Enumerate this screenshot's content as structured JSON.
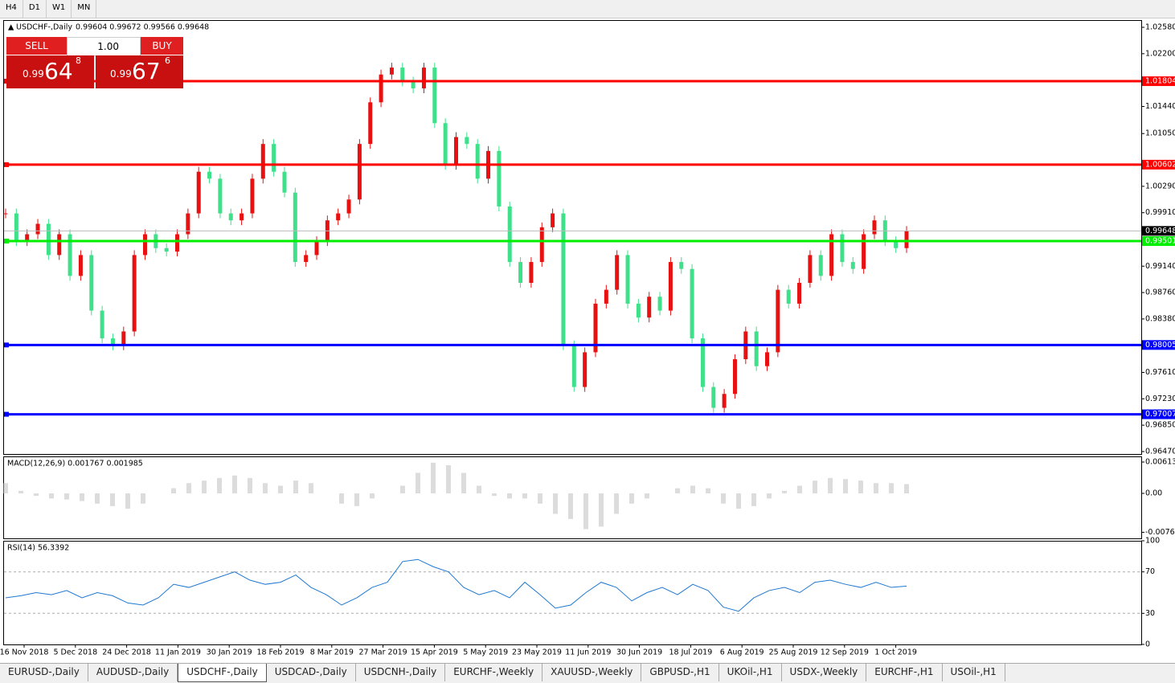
{
  "toolbar": [
    "H4",
    "D1",
    "W1",
    "MN"
  ],
  "trade_panel": {
    "sell": "SELL",
    "buy": "BUY",
    "lots": "1.00",
    "bid": {
      "big": "0.99",
      "main": "64",
      "small": "8"
    },
    "ask": {
      "big": "0.99",
      "main": "67",
      "small": "6"
    }
  },
  "price_chart": {
    "type": "candlestick",
    "title": "USDCHF-,Daily",
    "ohlc": "0.99604 0.99672 0.99566 0.99648",
    "ylim": [
      0.96435,
      1.02684
    ],
    "yticks": [
      {
        "value": 1.0258,
        "label": "1.02580"
      },
      {
        "value": 1.022,
        "label": "1.02200"
      },
      {
        "value": 1.0144,
        "label": "1.01440"
      },
      {
        "value": 1.0105,
        "label": "1.01050"
      },
      {
        "value": 1.0029,
        "label": "1.00290"
      },
      {
        "value": 0.9991,
        "label": "0.99910"
      },
      {
        "value": 0.9914,
        "label": "0.99140"
      },
      {
        "value": 0.9876,
        "label": "0.98760"
      },
      {
        "value": 0.9838,
        "label": "0.98380"
      },
      {
        "value": 0.9761,
        "label": "0.97610"
      },
      {
        "value": 0.9723,
        "label": "0.97230"
      },
      {
        "value": 0.9685,
        "label": "0.96850"
      },
      {
        "value": 0.9647,
        "label": "0.96470"
      }
    ],
    "levels": [
      {
        "value": 1.01804,
        "color": "#ff0000"
      },
      {
        "value": 1.00602,
        "color": "#ff0000"
      },
      {
        "value": 0.99501,
        "color": "#00ee00"
      },
      {
        "value": 0.98005,
        "color": "#0000ff"
      },
      {
        "value": 0.97007,
        "color": "#0000ff"
      }
    ],
    "last_price": 0.99648,
    "up_color": "#e81010",
    "down_color": "#3ee08a",
    "closes": [
      0.999,
      0.995,
      0.996,
      0.9975,
      0.993,
      0.996,
      0.99,
      0.993,
      0.985,
      0.981,
      0.98,
      0.982,
      0.993,
      0.996,
      0.994,
      0.9935,
      0.996,
      0.999,
      1.005,
      1.004,
      0.999,
      0.998,
      0.999,
      1.004,
      1.009,
      1.005,
      1.002,
      0.992,
      0.993,
      0.995,
      0.998,
      0.999,
      1.001,
      1.009,
      1.015,
      1.019,
      1.02,
      1.018,
      1.017,
      1.02,
      1.012,
      1.006,
      1.01,
      1.009,
      1.004,
      1.008,
      1.0,
      0.992,
      0.989,
      0.992,
      0.997,
      0.999,
      0.98,
      0.974,
      0.979,
      0.986,
      0.988,
      0.993,
      0.986,
      0.984,
      0.987,
      0.985,
      0.992,
      0.991,
      0.981,
      0.974,
      0.971,
      0.973,
      0.978,
      0.982,
      0.977,
      0.979,
      0.988,
      0.986,
      0.989,
      0.993,
      0.99,
      0.996,
      0.992,
      0.991,
      0.996,
      0.998,
      0.995,
      0.994,
      0.99648
    ]
  },
  "macd": {
    "type": "histogram",
    "title": "MACD(12,26,9) 0.001767 0.001985",
    "ylim": [
      -0.0088,
      0.00723
    ],
    "yticks": [
      0.00613,
      {
        "value": 0,
        "label": "0.00"
      },
      -0.007612
    ],
    "color": "#b8b8b8",
    "values": [
      0.002,
      0.0005,
      -0.0005,
      -0.001,
      -0.0012,
      -0.0015,
      -0.002,
      -0.0025,
      -0.003,
      -0.002,
      0,
      0.001,
      0.002,
      0.0025,
      0.003,
      0.0035,
      0.003,
      0.002,
      0.0015,
      0.0025,
      0.002,
      0,
      -0.002,
      -0.0025,
      -0.001,
      0,
      0.0015,
      0.004,
      0.006,
      0.0055,
      0.004,
      0.0015,
      -0.0005,
      -0.001,
      -0.001,
      -0.002,
      -0.004,
      -0.005,
      -0.007,
      -0.0065,
      -0.004,
      -0.002,
      -0.001,
      0,
      0.001,
      0.0015,
      0.001,
      -0.002,
      -0.003,
      -0.0025,
      -0.001,
      0.0005,
      0.0015,
      0.0025,
      0.003,
      0.0028,
      0.0025,
      0.002,
      0.002,
      0.0018
    ]
  },
  "rsi": {
    "type": "line",
    "title": "RSI(14) 56.3392",
    "ylim": [
      0,
      100
    ],
    "yticks": [
      100,
      70,
      30,
      0
    ],
    "color": "#1e78d0",
    "values": [
      45,
      47,
      50,
      48,
      52,
      45,
      50,
      47,
      40,
      38,
      45,
      58,
      55,
      60,
      65,
      70,
      62,
      58,
      60,
      67,
      55,
      48,
      38,
      45,
      55,
      60,
      80,
      82,
      75,
      70,
      55,
      48,
      52,
      45,
      60,
      48,
      35,
      38,
      50,
      60,
      55,
      42,
      50,
      55,
      48,
      58,
      52,
      36,
      32,
      45,
      52,
      55,
      50,
      60,
      62,
      58,
      55,
      60,
      55,
      56.3392
    ]
  },
  "dates": [
    "16 Nov 2018",
    "5 Dec 2018",
    "24 Dec 2018",
    "11 Jan 2019",
    "30 Jan 2019",
    "18 Feb 2019",
    "8 Mar 2019",
    "27 Mar 2019",
    "15 Apr 2019",
    "5 May 2019",
    "23 May 2019",
    "11 Jun 2019",
    "30 Jun 2019",
    "18 Jul 2019",
    "6 Aug 2019",
    "25 Aug 2019",
    "12 Sep 2019",
    "1 Oct 2019"
  ],
  "tabs": [
    "EURUSD-,Daily",
    "AUDUSD-,Daily",
    "USDCHF-,Daily",
    "USDCAD-,Daily",
    "USDCNH-,Daily",
    "EURCHF-,Weekly",
    "XAUUSD-,Weekly",
    "GBPUSD-,H1",
    "UKOil-,H1",
    "USDX-,Weekly",
    "EURCHF-,H1",
    "USOil-,H1"
  ],
  "active_tab": 2
}
